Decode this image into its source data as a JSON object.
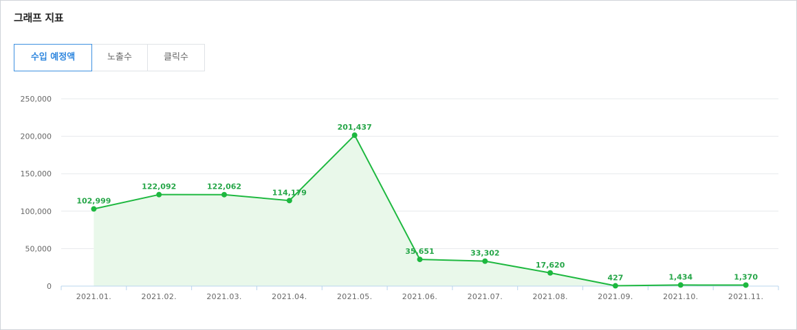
{
  "header": {
    "title": "그래프 지표"
  },
  "tabs": [
    {
      "label": "수입 예정액",
      "active": true
    },
    {
      "label": "노출수",
      "active": false
    },
    {
      "label": "클릭수",
      "active": false
    }
  ],
  "colors": {
    "line": "#1db83f",
    "area": "#e9f8ea",
    "grid": "#e6e8eb",
    "axis": "#b8d4ee",
    "label": "#26a648",
    "active_tab": "#2e86de"
  },
  "chart_data": {
    "type": "area",
    "title": "",
    "xlabel": "",
    "ylabel": "",
    "categories": [
      "2021.01.",
      "2021.02.",
      "2021.03.",
      "2021.04.",
      "2021.05.",
      "2021.06.",
      "2021.07.",
      "2021.08.",
      "2021.09.",
      "2021.10.",
      "2021.11."
    ],
    "values": [
      102999,
      122092,
      122062,
      114179,
      201437,
      35651,
      33302,
      17620,
      427,
      1434,
      1370
    ],
    "value_labels": [
      "102,999",
      "122,092",
      "122,062",
      "114,179",
      "201,437",
      "35,651",
      "33,302",
      "17,620",
      "427",
      "1,434",
      "1,370"
    ],
    "y_ticks": [
      0,
      50000,
      100000,
      150000,
      200000,
      250000
    ],
    "y_tick_labels": [
      "0",
      "50,000",
      "100,000",
      "150,000",
      "200,000",
      "250,000"
    ],
    "ylim": [
      0,
      250000
    ],
    "grid": true,
    "legend": "none"
  }
}
